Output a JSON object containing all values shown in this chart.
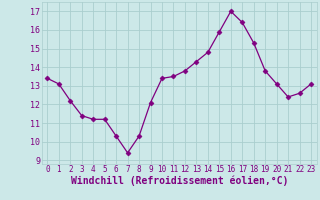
{
  "x": [
    0,
    1,
    2,
    3,
    4,
    5,
    6,
    7,
    8,
    9,
    10,
    11,
    12,
    13,
    14,
    15,
    16,
    17,
    18,
    19,
    20,
    21,
    22,
    23
  ],
  "y": [
    13.4,
    13.1,
    12.2,
    11.4,
    11.2,
    11.2,
    10.3,
    9.4,
    10.3,
    12.1,
    13.4,
    13.5,
    13.8,
    14.3,
    14.8,
    15.9,
    17.0,
    16.4,
    15.3,
    13.8,
    13.1,
    12.4,
    12.6,
    13.1
  ],
  "line_color": "#800080",
  "marker": "D",
  "marker_size": 2.5,
  "bg_color": "#cce8e8",
  "grid_color": "#aacece",
  "xlabel": "Windchill (Refroidissement éolien,°C)",
  "xlabel_color": "#800080",
  "xlabel_fontsize": 7,
  "tick_color": "#800080",
  "ylim": [
    8.8,
    17.5
  ],
  "yticks": [
    9,
    10,
    11,
    12,
    13,
    14,
    15,
    16,
    17
  ],
  "xticks": [
    0,
    1,
    2,
    3,
    4,
    5,
    6,
    7,
    8,
    9,
    10,
    11,
    12,
    13,
    14,
    15,
    16,
    17,
    18,
    19,
    20,
    21,
    22,
    23
  ],
  "xlim": [
    -0.5,
    23.5
  ]
}
